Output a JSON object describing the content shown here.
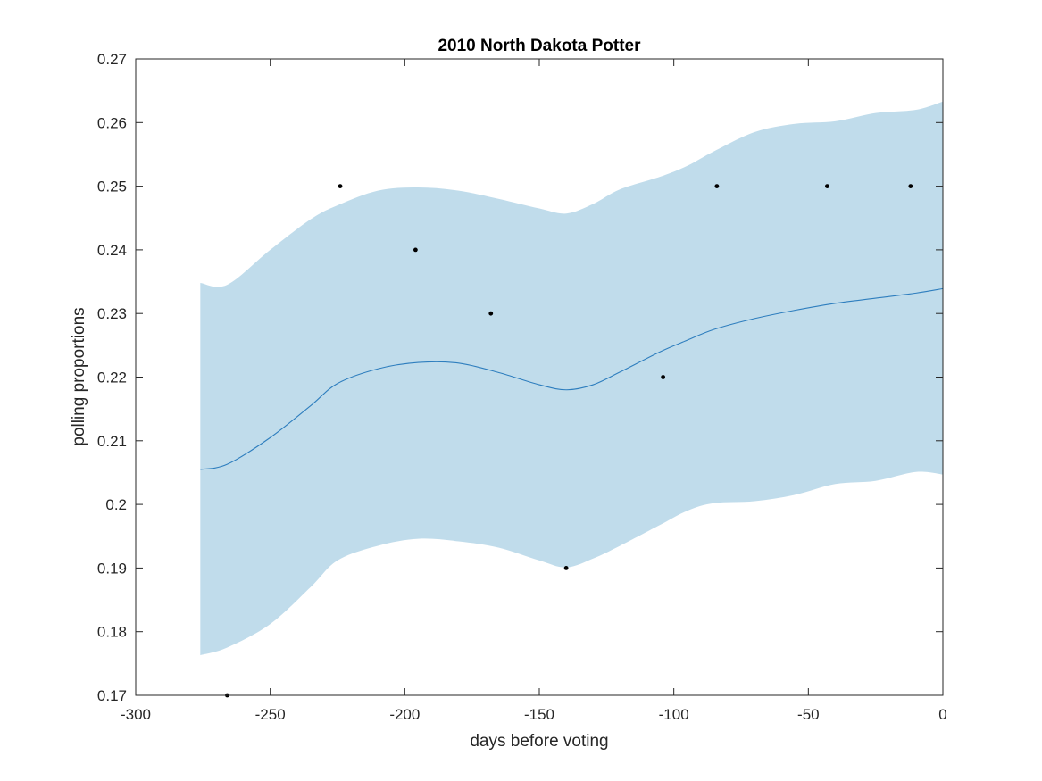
{
  "chart_data": {
    "type": "line",
    "title": "2010 North Dakota Potter",
    "xlabel": "days before voting",
    "ylabel": "polling proportions",
    "xlim": [
      -300,
      0
    ],
    "ylim": [
      0.17,
      0.27
    ],
    "xticks": [
      -300,
      -250,
      -200,
      -150,
      -100,
      -50,
      0
    ],
    "xtick_labels": [
      "-300",
      "-250",
      "-200",
      "-150",
      "-100",
      "-50",
      "0"
    ],
    "yticks": [
      0.17,
      0.18,
      0.19,
      0.2,
      0.21,
      0.22,
      0.23,
      0.24,
      0.25,
      0.26,
      0.27
    ],
    "ytick_labels": [
      "0.17",
      "0.18",
      "0.19",
      "0.2",
      "0.21",
      "0.22",
      "0.23",
      "0.24",
      "0.25",
      "0.26",
      "0.27"
    ],
    "grid": false,
    "series": [
      {
        "name": "estimate",
        "kind": "line",
        "color": "#2e7ebe",
        "x": [
          -276,
          -266,
          -250,
          -235,
          -225,
          -210,
          -195,
          -180,
          -165,
          -150,
          -140,
          -130,
          -120,
          -105,
          -95,
          -85,
          -70,
          -55,
          -40,
          -25,
          -10,
          0
        ],
        "y": [
          0.2055,
          0.2063,
          0.2105,
          0.2155,
          0.219,
          0.2213,
          0.2223,
          0.2222,
          0.2207,
          0.2188,
          0.218,
          0.2188,
          0.2208,
          0.224,
          0.2258,
          0.2275,
          0.2292,
          0.2305,
          0.2316,
          0.2324,
          0.2332,
          0.2339
        ]
      },
      {
        "name": "confidence band upper",
        "kind": "band-upper",
        "color": "#c0dceb",
        "x": [
          -276,
          -266,
          -250,
          -235,
          -225,
          -210,
          -195,
          -180,
          -165,
          -150,
          -140,
          -130,
          -120,
          -105,
          -95,
          -85,
          -70,
          -55,
          -40,
          -25,
          -10,
          0
        ],
        "y": [
          0.2348,
          0.2345,
          0.24,
          0.2448,
          0.247,
          0.2493,
          0.2498,
          0.2493,
          0.248,
          0.2465,
          0.2457,
          0.2472,
          0.2495,
          0.2515,
          0.2532,
          0.2555,
          0.2585,
          0.2598,
          0.2602,
          0.2615,
          0.262,
          0.2633
        ]
      },
      {
        "name": "confidence band lower",
        "kind": "band-lower",
        "color": "#c0dceb",
        "x": [
          -276,
          -266,
          -250,
          -235,
          -225,
          -210,
          -195,
          -180,
          -165,
          -150,
          -140,
          -130,
          -120,
          -105,
          -95,
          -85,
          -70,
          -55,
          -40,
          -25,
          -10,
          0
        ],
        "y": [
          0.1763,
          0.1775,
          0.1812,
          0.187,
          0.1912,
          0.1935,
          0.1946,
          0.1942,
          0.1932,
          0.1912,
          0.1901,
          0.1915,
          0.1935,
          0.1968,
          0.199,
          0.2002,
          0.2005,
          0.2015,
          0.2032,
          0.2037,
          0.2051,
          0.2047
        ]
      },
      {
        "name": "polls",
        "kind": "scatter",
        "color": "#000000",
        "x": [
          -266,
          -224,
          -196,
          -168,
          -140,
          -104,
          -84,
          -43,
          -12
        ],
        "y": [
          0.17,
          0.25,
          0.24,
          0.23,
          0.19,
          0.22,
          0.25,
          0.25,
          0.25
        ]
      }
    ]
  }
}
